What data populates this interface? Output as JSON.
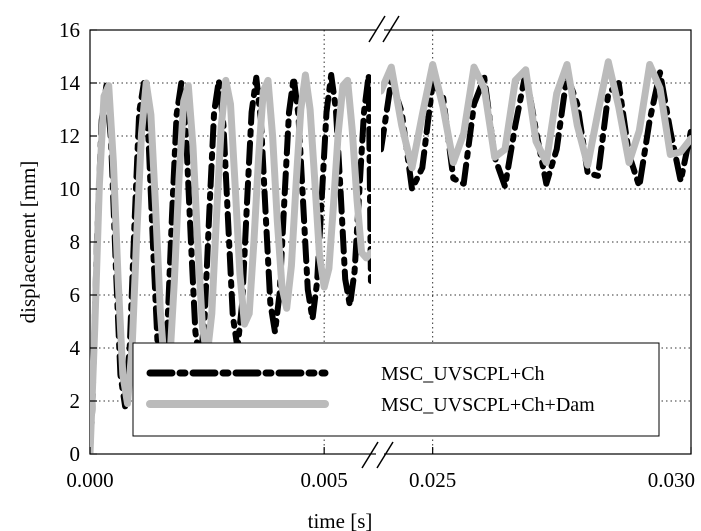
{
  "chart_data": {
    "type": "line",
    "xlabel": "time [s]",
    "ylabel": "displacement [mm]",
    "ylim": [
      0,
      16
    ],
    "yticks": [
      0,
      2,
      4,
      6,
      8,
      10,
      12,
      14,
      16
    ],
    "xaxis_broken": true,
    "x_segments": [
      {
        "range": [
          0.0,
          0.006
        ],
        "ticks": [
          0.0,
          0.005
        ],
        "tick_labels": [
          "0.000",
          "0.005"
        ]
      },
      {
        "range": [
          0.024,
          0.03
        ],
        "ticks": [
          0.025,
          0.03
        ],
        "tick_labels": [
          "0.025",
          "0.030"
        ]
      }
    ],
    "grid": "dotted",
    "legend_position": "bottom-center",
    "series": [
      {
        "name": "MSC_UVSCPL+Ch",
        "style": "dash-dot",
        "color": "#000000",
        "segments": [
          {
            "x": [
              0.0,
              5e-05,
              0.00015,
              0.00025,
              0.00035,
              0.00045,
              0.00055,
              0.00065,
              0.00075,
              0.00085,
              0.00095,
              0.00105,
              0.00115,
              0.00125,
              0.00135,
              0.00145,
              0.00155,
              0.00165,
              0.00175,
              0.00185,
              0.00195,
              0.00205,
              0.00215,
              0.00225,
              0.00235,
              0.00245,
              0.00255,
              0.00265,
              0.00275,
              0.00285,
              0.00295,
              0.00305,
              0.00315,
              0.00325,
              0.00335,
              0.00345,
              0.00355,
              0.00365,
              0.00375,
              0.00385,
              0.00395,
              0.00405,
              0.00415,
              0.00425,
              0.00435,
              0.00445,
              0.00455,
              0.00465,
              0.00475,
              0.00485,
              0.00495,
              0.00505,
              0.00515,
              0.00525,
              0.00535,
              0.00545,
              0.00555,
              0.00565,
              0.00575,
              0.00585,
              0.00595,
              0.006
            ],
            "y": [
              0.0,
              1.7,
              8.1,
              12.6,
              13.9,
              11.8,
              7.1,
              3.0,
              1.8,
              4.1,
              8.7,
              12.9,
              14.0,
              11.9,
              7.7,
              3.9,
              2.6,
              4.7,
              9.0,
              12.8,
              14.0,
              12.1,
              8.2,
              4.6,
              3.4,
              5.2,
              9.2,
              12.9,
              14.1,
              12.4,
              8.7,
              5.2,
              4.0,
              5.7,
              9.4,
              12.9,
              14.2,
              12.6,
              9.1,
              5.7,
              4.6,
              6.1,
              9.6,
              12.9,
              14.2,
              12.8,
              9.5,
              6.2,
              5.1,
              6.5,
              9.7,
              12.9,
              14.3,
              13.0,
              9.9,
              6.6,
              5.6,
              6.9,
              9.9,
              12.9,
              14.3,
              6.3
            ]
          },
          {
            "x": [
              0.024,
              0.0242,
              0.0244,
              0.0246,
              0.0248,
              0.025,
              0.0252,
              0.0254,
              0.0256,
              0.0258,
              0.026,
              0.0262,
              0.0264,
              0.0266,
              0.0268,
              0.027,
              0.0272,
              0.0274,
              0.0276,
              0.0278,
              0.028,
              0.0282,
              0.0284,
              0.0286,
              0.0288,
              0.029,
              0.0292,
              0.0294,
              0.0296,
              0.0298,
              0.03
            ],
            "y": [
              11.5,
              14.1,
              12.9,
              10.0,
              10.8,
              14.0,
              13.5,
              10.4,
              10.2,
              13.2,
              14.2,
              11.2,
              10.1,
              12.4,
              14.4,
              12.2,
              10.2,
              11.5,
              14.3,
              13.2,
              10.6,
              10.5,
              13.6,
              14.0,
              11.3,
              10.1,
              12.6,
              14.4,
              12.2,
              10.3,
              12.2
            ]
          }
        ]
      },
      {
        "name": "MSC_UVSCPL+Ch+Dam",
        "style": "solid",
        "color": "#bbbbbb",
        "segments": [
          {
            "x": [
              0.0,
              0.0001,
              0.0002,
              0.0003,
              0.0004,
              0.0005,
              0.0006,
              0.0007,
              0.0008,
              0.0009,
              0.001,
              0.0011,
              0.0012,
              0.0013,
              0.0014,
              0.0015,
              0.0016,
              0.0017,
              0.0018,
              0.0019,
              0.002,
              0.0021,
              0.0022,
              0.0023,
              0.0024,
              0.0025,
              0.0026,
              0.0027,
              0.0028,
              0.0029,
              0.003,
              0.0031,
              0.0032,
              0.0033,
              0.0034,
              0.0035,
              0.0036,
              0.0037,
              0.0038,
              0.0039,
              0.004,
              0.0041,
              0.0042,
              0.0043,
              0.0044,
              0.0045,
              0.0046,
              0.0047,
              0.0048,
              0.0049,
              0.005,
              0.0051,
              0.0052,
              0.0053,
              0.0054,
              0.0055,
              0.0056,
              0.0057,
              0.0058,
              0.0059,
              0.006
            ],
            "y": [
              0.0,
              4.7,
              10.2,
              13.5,
              13.9,
              11.0,
              6.6,
              3.0,
              1.9,
              4.1,
              8.3,
              12.1,
              14.0,
              12.8,
              9.3,
              5.4,
              3.1,
              3.4,
              6.5,
              10.4,
              13.3,
              13.9,
              11.6,
              8.0,
              4.8,
              3.7,
              5.3,
              8.9,
              12.3,
              14.1,
              13.2,
              10.1,
              6.8,
              4.9,
              5.3,
              8.0,
              11.2,
              13.7,
              14.1,
              12.0,
              8.8,
              6.3,
              5.5,
              7.1,
              10.2,
              13.0,
              14.3,
              13.0,
              10.3,
              7.5,
              6.3,
              7.0,
              9.4,
              12.1,
              13.9,
              14.1,
              12.2,
              9.6,
              7.6,
              7.4,
              7.6
            ]
          },
          {
            "x": [
              0.024,
              0.0242,
              0.0244,
              0.0246,
              0.0248,
              0.025,
              0.0252,
              0.0254,
              0.0256,
              0.0258,
              0.026,
              0.0262,
              0.0264,
              0.0266,
              0.0268,
              0.027,
              0.0272,
              0.0274,
              0.0276,
              0.0278,
              0.028,
              0.0282,
              0.0284,
              0.0286,
              0.0288,
              0.029,
              0.0292,
              0.0294,
              0.0296,
              0.0298,
              0.03
            ],
            "y": [
              13.7,
              14.6,
              12.4,
              10.8,
              12.8,
              14.7,
              13.1,
              11.0,
              12.1,
              14.6,
              13.8,
              11.2,
              11.5,
              14.1,
              14.5,
              11.8,
              11.0,
              13.6,
              14.7,
              12.4,
              10.9,
              12.9,
              14.8,
              13.1,
              11.0,
              12.2,
              14.7,
              13.8,
              11.3,
              11.4,
              11.9
            ]
          }
        ]
      }
    ]
  }
}
